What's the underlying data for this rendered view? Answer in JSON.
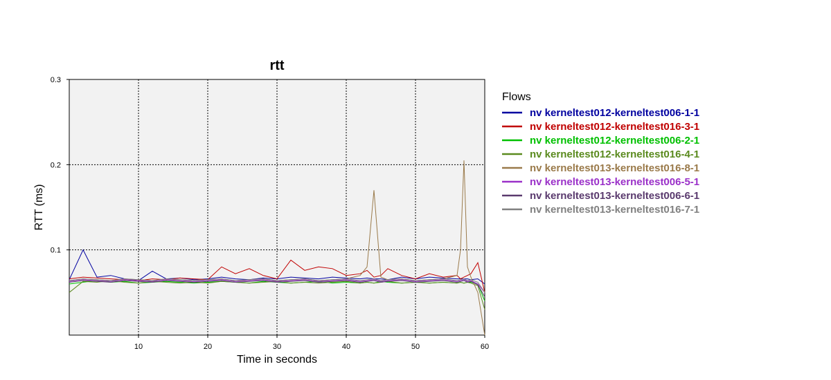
{
  "chart_data": {
    "type": "line",
    "title": "rtt",
    "xlabel": "Time in seconds",
    "ylabel": "RTT (ms)",
    "xlim": [
      0,
      60
    ],
    "ylim": [
      0,
      0.3
    ],
    "x_ticks": [
      10,
      20,
      30,
      40,
      50,
      60
    ],
    "y_ticks": [
      0.1,
      0.2,
      0.3
    ],
    "x_tick_labels": [
      "10",
      "20",
      "30",
      "40",
      "50",
      "60"
    ],
    "y_tick_labels": [
      "0.1",
      "0.2",
      "0.3"
    ],
    "grid": true,
    "legend_title": "Flows",
    "legend_position": "right",
    "x": [
      0,
      2,
      4,
      6,
      8,
      10,
      12,
      14,
      16,
      18,
      20,
      22,
      24,
      26,
      28,
      30,
      32,
      34,
      36,
      38,
      40,
      42,
      43,
      44,
      45,
      46,
      48,
      50,
      52,
      54,
      56,
      56.5,
      57,
      57.5,
      58,
      59,
      60
    ],
    "series": [
      {
        "name": "nv kerneltest012-kerneltest006-1-1",
        "color": "#0000a0",
        "values": [
          0.065,
          0.1,
          0.068,
          0.07,
          0.066,
          0.064,
          0.075,
          0.066,
          0.067,
          0.065,
          0.066,
          0.068,
          0.066,
          0.065,
          0.067,
          0.066,
          0.068,
          0.067,
          0.066,
          0.068,
          0.067,
          0.066,
          0.067,
          0.066,
          0.066,
          0.065,
          0.068,
          0.066,
          0.068,
          0.067,
          0.066,
          0.066,
          0.066,
          0.066,
          0.065,
          0.066,
          0.06
        ]
      },
      {
        "name": "nv kerneltest012-kerneltest016-3-1",
        "color": "#c00000",
        "values": [
          0.066,
          0.068,
          0.067,
          0.066,
          0.065,
          0.064,
          0.066,
          0.065,
          0.067,
          0.066,
          0.065,
          0.08,
          0.072,
          0.078,
          0.07,
          0.066,
          0.088,
          0.076,
          0.08,
          0.078,
          0.07,
          0.072,
          0.076,
          0.068,
          0.07,
          0.078,
          0.07,
          0.066,
          0.072,
          0.068,
          0.07,
          0.066,
          0.068,
          0.07,
          0.072,
          0.085,
          0.05
        ]
      },
      {
        "name": "nv kerneltest012-kerneltest006-2-1",
        "color": "#00c000",
        "values": [
          0.06,
          0.062,
          0.064,
          0.062,
          0.063,
          0.061,
          0.062,
          0.063,
          0.062,
          0.061,
          0.062,
          0.063,
          0.062,
          0.061,
          0.063,
          0.062,
          0.061,
          0.062,
          0.063,
          0.061,
          0.062,
          0.061,
          0.062,
          0.061,
          0.063,
          0.062,
          0.061,
          0.062,
          0.061,
          0.062,
          0.061,
          0.062,
          0.061,
          0.062,
          0.062,
          0.06,
          0.04
        ]
      },
      {
        "name": "nv kerneltest012-kerneltest016-4-1",
        "color": "#5a8a1e",
        "values": [
          0.05,
          0.063,
          0.062,
          0.064,
          0.062,
          0.061,
          0.063,
          0.062,
          0.061,
          0.062,
          0.061,
          0.063,
          0.062,
          0.061,
          0.062,
          0.063,
          0.061,
          0.062,
          0.061,
          0.062,
          0.063,
          0.061,
          0.062,
          0.061,
          0.062,
          0.063,
          0.061,
          0.062,
          0.061,
          0.062,
          0.061,
          0.062,
          0.061,
          0.062,
          0.061,
          0.058,
          0.03
        ]
      },
      {
        "name": "nv kerneltest013-kerneltest016-8-1",
        "color": "#9a7a4a",
        "values": [
          0.064,
          0.066,
          0.065,
          0.064,
          0.066,
          0.065,
          0.064,
          0.066,
          0.065,
          0.064,
          0.065,
          0.066,
          0.064,
          0.065,
          0.066,
          0.064,
          0.065,
          0.066,
          0.064,
          0.065,
          0.066,
          0.07,
          0.08,
          0.17,
          0.068,
          0.065,
          0.066,
          0.064,
          0.065,
          0.066,
          0.07,
          0.1,
          0.205,
          0.08,
          0.068,
          0.05,
          0.0
        ]
      },
      {
        "name": "nv kerneltest013-kerneltest006-5-1",
        "color": "#9a30c8",
        "values": [
          0.063,
          0.065,
          0.064,
          0.063,
          0.065,
          0.064,
          0.063,
          0.065,
          0.064,
          0.063,
          0.064,
          0.065,
          0.063,
          0.064,
          0.065,
          0.063,
          0.064,
          0.065,
          0.063,
          0.064,
          0.065,
          0.063,
          0.064,
          0.065,
          0.063,
          0.064,
          0.065,
          0.063,
          0.064,
          0.065,
          0.063,
          0.064,
          0.065,
          0.063,
          0.064,
          0.06,
          0.05
        ]
      },
      {
        "name": "nv kerneltest013-kerneltest006-6-1",
        "color": "#5a3a6e",
        "values": [
          0.062,
          0.064,
          0.063,
          0.062,
          0.064,
          0.063,
          0.062,
          0.064,
          0.063,
          0.062,
          0.063,
          0.064,
          0.062,
          0.063,
          0.064,
          0.062,
          0.063,
          0.064,
          0.062,
          0.063,
          0.064,
          0.062,
          0.063,
          0.064,
          0.062,
          0.063,
          0.064,
          0.062,
          0.063,
          0.064,
          0.062,
          0.063,
          0.064,
          0.062,
          0.063,
          0.059,
          0.045
        ]
      },
      {
        "name": "nv kerneltest013-kerneltest016-7-1",
        "color": "#808080",
        "values": [
          0.064,
          0.066,
          0.065,
          0.064,
          0.066,
          0.065,
          0.064,
          0.066,
          0.065,
          0.064,
          0.065,
          0.066,
          0.064,
          0.065,
          0.066,
          0.064,
          0.065,
          0.066,
          0.064,
          0.065,
          0.066,
          0.064,
          0.065,
          0.066,
          0.064,
          0.065,
          0.066,
          0.064,
          0.065,
          0.066,
          0.064,
          0.065,
          0.066,
          0.064,
          0.065,
          0.062,
          0.05
        ]
      }
    ]
  }
}
